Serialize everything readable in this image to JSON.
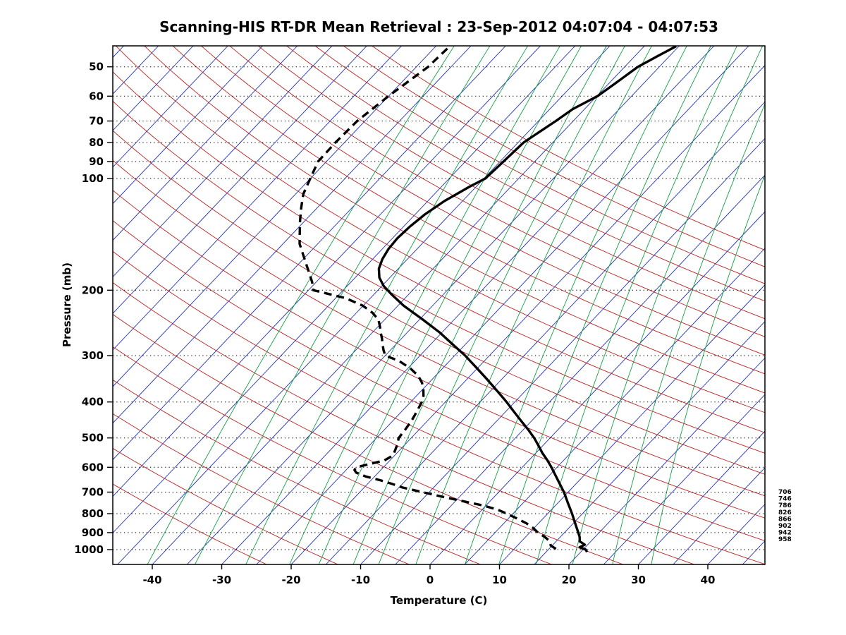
{
  "chart_data": {
    "type": "line",
    "projection": "skew-t-log-p",
    "title": "Scanning-HIS RT-DR Mean Retrieval : 23-Sep-2012 04:07:04 - 04:07:53",
    "xlabel": "Temperature (C)",
    "ylabel": "Pressure (mb)",
    "x_ticks": [
      -40,
      -30,
      -20,
      -10,
      0,
      10,
      20,
      30,
      40
    ],
    "y_ticks": [
      50,
      60,
      70,
      80,
      90,
      100,
      200,
      300,
      400,
      500,
      600,
      700,
      800,
      900,
      1000
    ],
    "x_axis_range_c": [
      -45.7,
      48.2
    ],
    "pressure_range_mb": [
      44,
      1096
    ],
    "y_scale": "log",
    "grid": "dotted-horizontal-pressure-lines",
    "legend": "none",
    "series": [
      {
        "name": "temperature",
        "style": "solid",
        "color": "#000000",
        "points": [
          [
            1015,
            20.9
          ],
          [
            1000,
            20.4
          ],
          [
            985,
            19.2
          ],
          [
            970,
            19.6
          ],
          [
            950,
            18.4
          ],
          [
            925,
            17.8
          ],
          [
            900,
            17.0
          ],
          [
            850,
            15.3
          ],
          [
            800,
            13.5
          ],
          [
            750,
            11.5
          ],
          [
            700,
            9.4
          ],
          [
            650,
            6.9
          ],
          [
            600,
            4.2
          ],
          [
            575,
            2.7
          ],
          [
            550,
            1.0
          ],
          [
            525,
            -0.6
          ],
          [
            500,
            -2.3
          ],
          [
            475,
            -4.3
          ],
          [
            450,
            -6.5
          ],
          [
            425,
            -8.8
          ],
          [
            400,
            -11.2
          ],
          [
            375,
            -13.9
          ],
          [
            350,
            -16.8
          ],
          [
            325,
            -20.0
          ],
          [
            300,
            -23.5
          ],
          [
            280,
            -26.8
          ],
          [
            260,
            -30.3
          ],
          [
            240,
            -34.5
          ],
          [
            220,
            -39.2
          ],
          [
            205,
            -42.5
          ],
          [
            195,
            -44.7
          ],
          [
            185,
            -46.5
          ],
          [
            175,
            -47.8
          ],
          [
            165,
            -48.6
          ],
          [
            155,
            -49.1
          ],
          [
            145,
            -49.3
          ],
          [
            135,
            -49.1
          ],
          [
            125,
            -48.6
          ],
          [
            115,
            -47.6
          ],
          [
            105,
            -45.9
          ],
          [
            100,
            -44.8
          ],
          [
            90,
            -44.5
          ],
          [
            80,
            -44.2
          ],
          [
            75,
            -43.4
          ],
          [
            70,
            -42.5
          ],
          [
            65,
            -41.7
          ],
          [
            60,
            -39.9
          ],
          [
            55,
            -39.0
          ],
          [
            50,
            -38.1
          ],
          [
            47,
            -36.8
          ],
          [
            44,
            -35.4
          ]
        ]
      },
      {
        "name": "dewpoint",
        "style": "dashed",
        "color": "#000000",
        "points": [
          [
            995,
            16.0
          ],
          [
            975,
            14.8
          ],
          [
            950,
            14.1
          ],
          [
            925,
            12.8
          ],
          [
            900,
            11.2
          ],
          [
            875,
            9.9
          ],
          [
            850,
            8.3
          ],
          [
            825,
            6.3
          ],
          [
            800,
            4.1
          ],
          [
            780,
            2.2
          ],
          [
            760,
            -0.5
          ],
          [
            740,
            -4.0
          ],
          [
            720,
            -7.5
          ],
          [
            700,
            -11.0
          ],
          [
            680,
            -14.5
          ],
          [
            665,
            -16.5
          ],
          [
            650,
            -18.7
          ],
          [
            635,
            -21.3
          ],
          [
            620,
            -23.2
          ],
          [
            610,
            -23.8
          ],
          [
            600,
            -23.9
          ],
          [
            590,
            -22.7
          ],
          [
            575,
            -20.8
          ],
          [
            560,
            -20.3
          ],
          [
            550,
            -20.4
          ],
          [
            525,
            -21.0
          ],
          [
            500,
            -21.8
          ],
          [
            475,
            -22.0
          ],
          [
            450,
            -22.3
          ],
          [
            425,
            -22.8
          ],
          [
            400,
            -23.4
          ],
          [
            385,
            -24.0
          ],
          [
            370,
            -24.9
          ],
          [
            355,
            -26.0
          ],
          [
            340,
            -27.5
          ],
          [
            325,
            -29.6
          ],
          [
            310,
            -32.3
          ],
          [
            300,
            -35.0
          ],
          [
            290,
            -36.0
          ],
          [
            280,
            -36.9
          ],
          [
            270,
            -37.8
          ],
          [
            260,
            -38.8
          ],
          [
            250,
            -39.8
          ],
          [
            240,
            -40.9
          ],
          [
            230,
            -42.7
          ],
          [
            220,
            -45.1
          ],
          [
            210,
            -48.6
          ],
          [
            200,
            -54.3
          ],
          [
            190,
            -55.6
          ],
          [
            180,
            -57.2
          ],
          [
            170,
            -58.9
          ],
          [
            160,
            -60.7
          ],
          [
            150,
            -62.6
          ],
          [
            140,
            -64.1
          ],
          [
            130,
            -65.7
          ],
          [
            120,
            -67.3
          ],
          [
            110,
            -68.9
          ],
          [
            100,
            -70.0
          ],
          [
            90,
            -71.2
          ],
          [
            80,
            -71.3
          ],
          [
            70,
            -71.1
          ],
          [
            60,
            -70.0
          ],
          [
            50,
            -68.3
          ],
          [
            44,
            -68.0
          ]
        ]
      }
    ],
    "background": {
      "isotherms": {
        "color": "#2233bb",
        "start": -115,
        "end": 45,
        "step": 5
      },
      "dry_adiabats": {
        "color": "#bb2222",
        "start": -30,
        "end": 200,
        "step": 10
      },
      "mixing_ratio": {
        "color": "#11a244",
        "values": [
          0.1,
          0.2,
          0.4,
          0.7,
          1,
          1.5,
          2,
          3,
          5,
          7,
          10,
          14,
          20,
          28
        ]
      },
      "gridline_color": "#000000"
    },
    "right_labels": [
      "706",
      "746",
      "786",
      "826",
      "866",
      "902",
      "942",
      "958"
    ]
  }
}
